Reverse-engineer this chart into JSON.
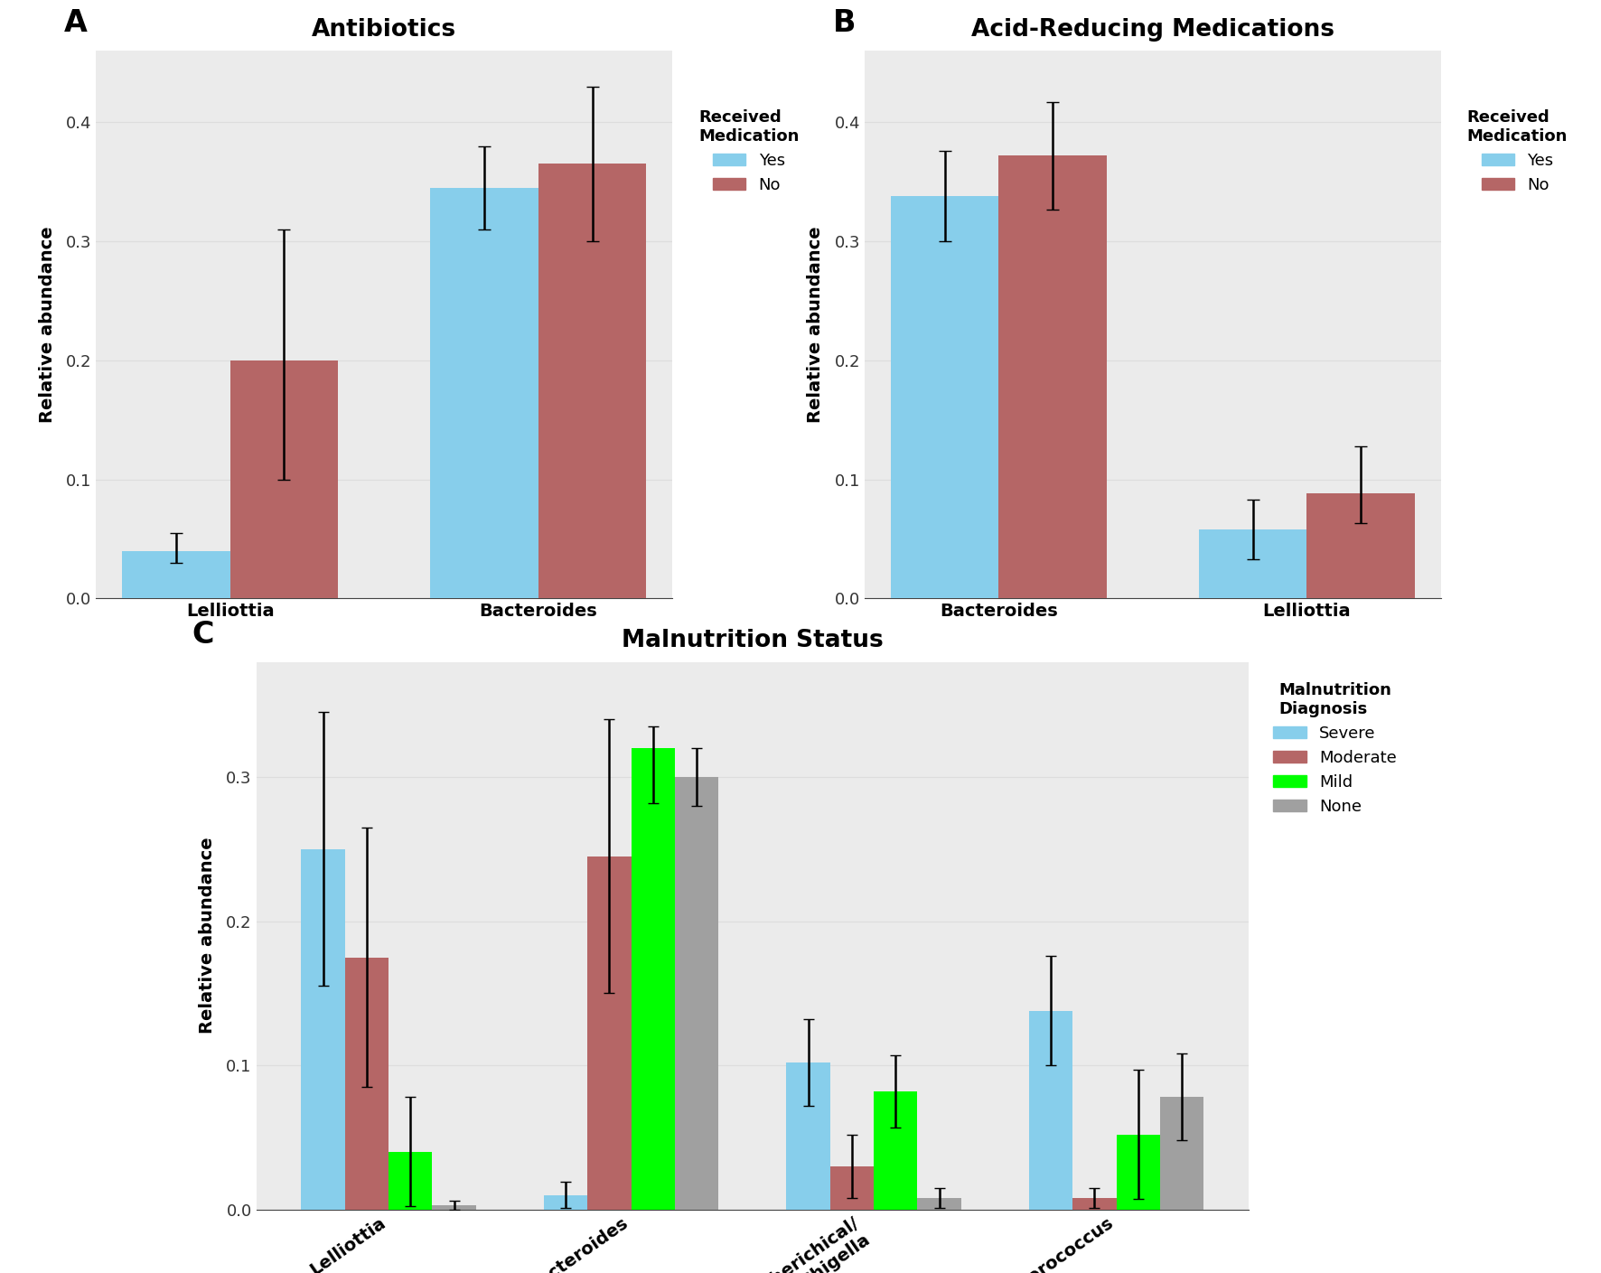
{
  "panel_A": {
    "title": "Antibiotics",
    "categories": [
      "Lelliottia",
      "Bacteroides"
    ],
    "yes_values": [
      0.04,
      0.345
    ],
    "no_values": [
      0.2,
      0.365
    ],
    "yes_err_low": [
      0.01,
      0.035
    ],
    "yes_err_high": [
      0.015,
      0.035
    ],
    "no_err_low": [
      0.1,
      0.065
    ],
    "no_err_high": [
      0.11,
      0.065
    ],
    "ylim": [
      0.0,
      0.46
    ],
    "yticks": [
      0.0,
      0.1,
      0.2,
      0.3,
      0.4
    ],
    "ylabel": "Relative abundance",
    "legend_title": "Received\nMedication",
    "legend_labels": [
      "Yes",
      "No"
    ],
    "bar_color_yes": "#87CEEB",
    "bar_color_no": "#B56666"
  },
  "panel_B": {
    "title": "Acid-Reducing Medications",
    "categories": [
      "Bacteroides",
      "Lelliottia"
    ],
    "yes_values": [
      0.338,
      0.058
    ],
    "no_values": [
      0.372,
      0.088
    ],
    "yes_err_low": [
      0.038,
      0.025
    ],
    "yes_err_high": [
      0.038,
      0.025
    ],
    "no_err_low": [
      0.045,
      0.025
    ],
    "no_err_high": [
      0.045,
      0.04
    ],
    "ylim": [
      0.0,
      0.46
    ],
    "yticks": [
      0.0,
      0.1,
      0.2,
      0.3,
      0.4
    ],
    "ylabel": "Relative abundance",
    "legend_title": "Received\nMedication",
    "legend_labels": [
      "Yes",
      "No"
    ],
    "bar_color_yes": "#87CEEB",
    "bar_color_no": "#B56666"
  },
  "panel_C": {
    "title": "Malnutrition Status",
    "categories": [
      "Lelliottia",
      "Bacteroides",
      "Esherichical/\nShigella",
      "Enterococcus"
    ],
    "severe_values": [
      0.25,
      0.01,
      0.102,
      0.138
    ],
    "moderate_values": [
      0.175,
      0.245,
      0.03,
      0.008
    ],
    "mild_values": [
      0.04,
      0.32,
      0.082,
      0.052
    ],
    "none_values": [
      0.003,
      0.3,
      0.008,
      0.078
    ],
    "severe_err_low": [
      0.095,
      0.009,
      0.03,
      0.038
    ],
    "severe_err_high": [
      0.095,
      0.009,
      0.03,
      0.038
    ],
    "moderate_err_low": [
      0.09,
      0.095,
      0.022,
      0.007
    ],
    "moderate_err_high": [
      0.09,
      0.095,
      0.022,
      0.007
    ],
    "mild_err_low": [
      0.038,
      0.038,
      0.025,
      0.045
    ],
    "mild_err_high": [
      0.038,
      0.015,
      0.025,
      0.045
    ],
    "none_err_low": [
      0.003,
      0.02,
      0.007,
      0.03
    ],
    "none_err_high": [
      0.003,
      0.02,
      0.007,
      0.03
    ],
    "ylim": [
      0.0,
      0.38
    ],
    "yticks": [
      0.0,
      0.1,
      0.2,
      0.3
    ],
    "ylabel": "Relative abundance",
    "legend_title": "Malnutrition\nDiagnosis",
    "legend_labels": [
      "Severe",
      "Moderate",
      "Mild",
      "None"
    ],
    "bar_color_severe": "#87CEEB",
    "bar_color_moderate": "#B56666",
    "bar_color_mild": "#00FF00",
    "bar_color_none": "#A0A0A0"
  },
  "bg_color": "#FFFFFF",
  "grid_color": "#DDDDDD",
  "panel_bg": "#EBEBEB"
}
